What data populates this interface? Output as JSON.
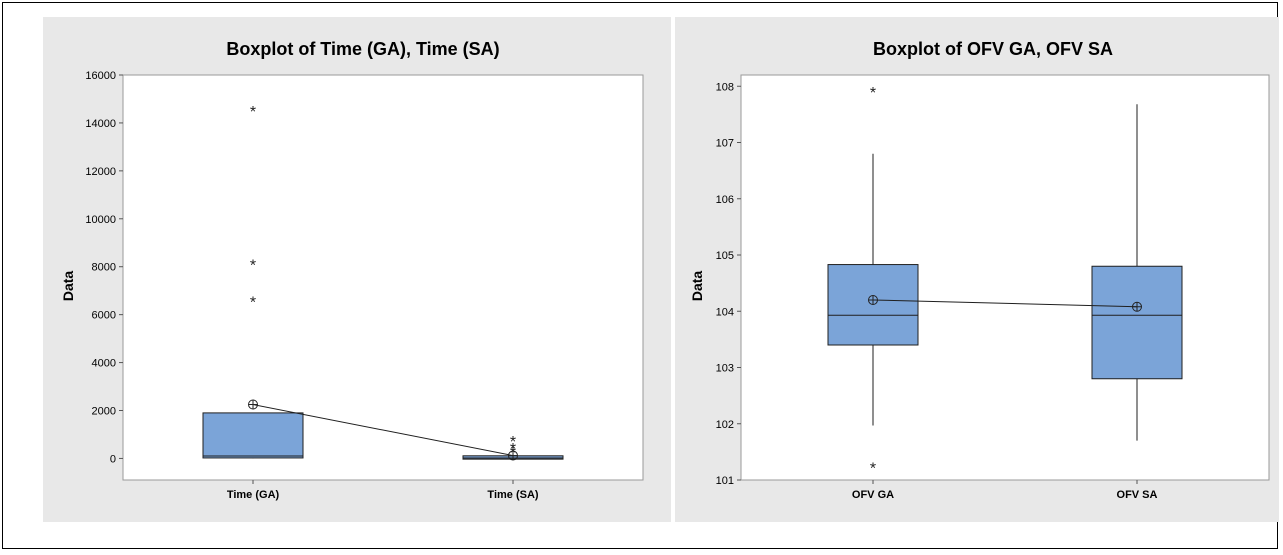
{
  "colors": {
    "panel_bg": "#e8e8e8",
    "plot_bg": "#ffffff",
    "box_fill": "#7ba4d8",
    "box_stroke": "#1f1f1f",
    "line": "#1f1f1f"
  },
  "chart_data": [
    {
      "type": "boxplot",
      "title": "Boxplot of Time (GA), Time (SA)",
      "ylabel": "Data",
      "ylim": [
        -900,
        16000
      ],
      "yticks": [
        0,
        2000,
        4000,
        6000,
        8000,
        10000,
        12000,
        14000,
        16000
      ],
      "categories": [
        "Time (GA)",
        "Time (SA)"
      ],
      "boxes": [
        {
          "q1": 20,
          "median": 100,
          "q3": 1900,
          "whisker_low": 0,
          "whisker_high": 1900,
          "mean": 2250,
          "outliers": [
            14500,
            8100,
            6550
          ]
        },
        {
          "q1": -30,
          "median": 20,
          "q3": 110,
          "whisker_low": -30,
          "whisker_high": 110,
          "mean": 120,
          "outliers": [
            720,
            430,
            260
          ]
        }
      ],
      "mean_connect_line": true
    },
    {
      "type": "boxplot",
      "title": "Boxplot of OFV GA, OFV SA",
      "ylabel": "Data",
      "ylim": [
        101,
        108.2
      ],
      "yticks": [
        101,
        102,
        103,
        104,
        105,
        106,
        107,
        108
      ],
      "categories": [
        "OFV GA",
        "OFV SA"
      ],
      "boxes": [
        {
          "q1": 103.4,
          "median": 103.93,
          "q3": 104.83,
          "whisker_low": 101.97,
          "whisker_high": 106.8,
          "mean": 104.2,
          "outliers": [
            107.9,
            101.22
          ]
        },
        {
          "q1": 102.8,
          "median": 103.93,
          "q3": 104.8,
          "whisker_low": 101.7,
          "whisker_high": 107.68,
          "mean": 104.08,
          "outliers": []
        }
      ],
      "mean_connect_line": true
    }
  ]
}
